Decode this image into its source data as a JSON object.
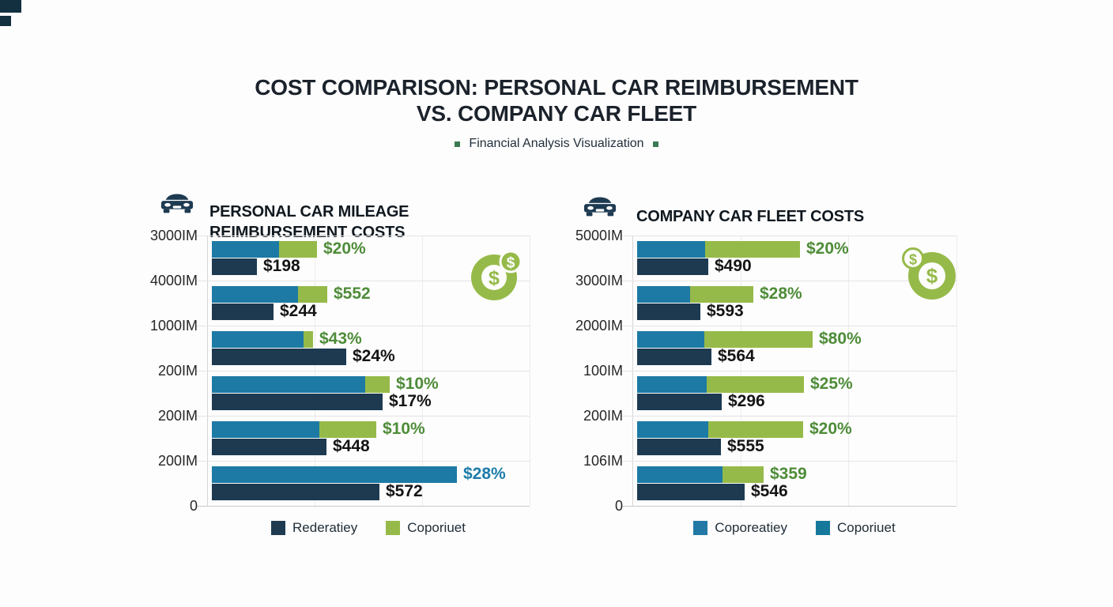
{
  "header": {
    "title_line1": "COST COMPARISON: PERSONAL CAR REIMBURSEMENT",
    "title_line2": "VS. COMPANY CAR FLEET",
    "subtitle": "Financial Analysis Visualization"
  },
  "colors": {
    "navy": "#1d3a51",
    "blue": "#1d7aa5",
    "green": "#96ba49",
    "green_text": "#4e8c38",
    "blue_text": "#1d7ca9",
    "label_text": "#141414",
    "grid": "#e4e4e4",
    "axis": "#d6d6d6",
    "bullet_green": "#3b7a52",
    "title_text": "#1b222b"
  },
  "chart_data": {
    "type": "bar",
    "orientation": "horizontal",
    "charts": [
      {
        "title": "PERSONAL CAR MILEAGE REIMBURSEMENT COSTS",
        "y_ticks": [
          "3000IM",
          "4000IM",
          "1000IM",
          "200IM",
          "200IM",
          "200IM",
          "0"
        ],
        "rows": [
          {
            "top": "$20%",
            "top_hex": "#4e8c38",
            "blue": 85,
            "green": 48,
            "bottom": "$198",
            "dark": 57
          },
          {
            "top": "$552",
            "top_hex": "#4e8c38",
            "blue": 109,
            "green": 37,
            "bottom": "$244",
            "dark": 78
          },
          {
            "top": "$43%",
            "top_hex": "#4e8c38",
            "blue": 116,
            "green": 12,
            "bottom": "$24%",
            "dark": 170
          },
          {
            "top": "$10%",
            "top_hex": "#4e8c38",
            "blue": 194,
            "green": 31,
            "bottom": "$17%",
            "dark": 216
          },
          {
            "top": "$10%",
            "top_hex": "#4e8c38",
            "blue": 136,
            "green": 72,
            "bottom": "$448",
            "dark": 145
          },
          {
            "top": "$28%",
            "top_hex": "#1d7ca9",
            "blue": 310,
            "green": 0,
            "bottom": "$572",
            "dark": 212
          }
        ],
        "legend": [
          {
            "label": "Rederatiey",
            "color": "#1d3a51"
          },
          {
            "label": "Coporiuet",
            "color": "#96ba49"
          }
        ]
      },
      {
        "title": "COMPANY CAR FLEET COSTS",
        "y_ticks": [
          "5000IM",
          "3000IM",
          "2000IM",
          "100IM",
          "200IM",
          "106IM",
          "0"
        ],
        "rows": [
          {
            "top": "$20%",
            "top_hex": "#4e8c38",
            "blue": 86,
            "green": 120,
            "bottom": "$490",
            "dark": 90
          },
          {
            "top": "$28%",
            "top_hex": "#4e8c38",
            "blue": 67,
            "green": 80,
            "bottom": "$593",
            "dark": 80
          },
          {
            "top": "$80%",
            "top_hex": "#4e8c38",
            "blue": 85,
            "green": 137,
            "bottom": "$564",
            "dark": 94
          },
          {
            "top": "$25%",
            "top_hex": "#4e8c38",
            "blue": 88,
            "green": 123,
            "bottom": "$296",
            "dark": 107
          },
          {
            "top": "$20%",
            "top_hex": "#4e8c38",
            "blue": 90,
            "green": 120,
            "bottom": "$555",
            "dark": 106
          },
          {
            "top": "$359",
            "top_hex": "#4e8c38",
            "blue": 108,
            "green": 52,
            "bottom": "$546",
            "dark": 136
          }
        ],
        "legend": [
          {
            "label": "Coporeatiey",
            "color": "#2279a5"
          },
          {
            "label": "Coporiuet",
            "color": "#16789b"
          }
        ]
      }
    ]
  }
}
